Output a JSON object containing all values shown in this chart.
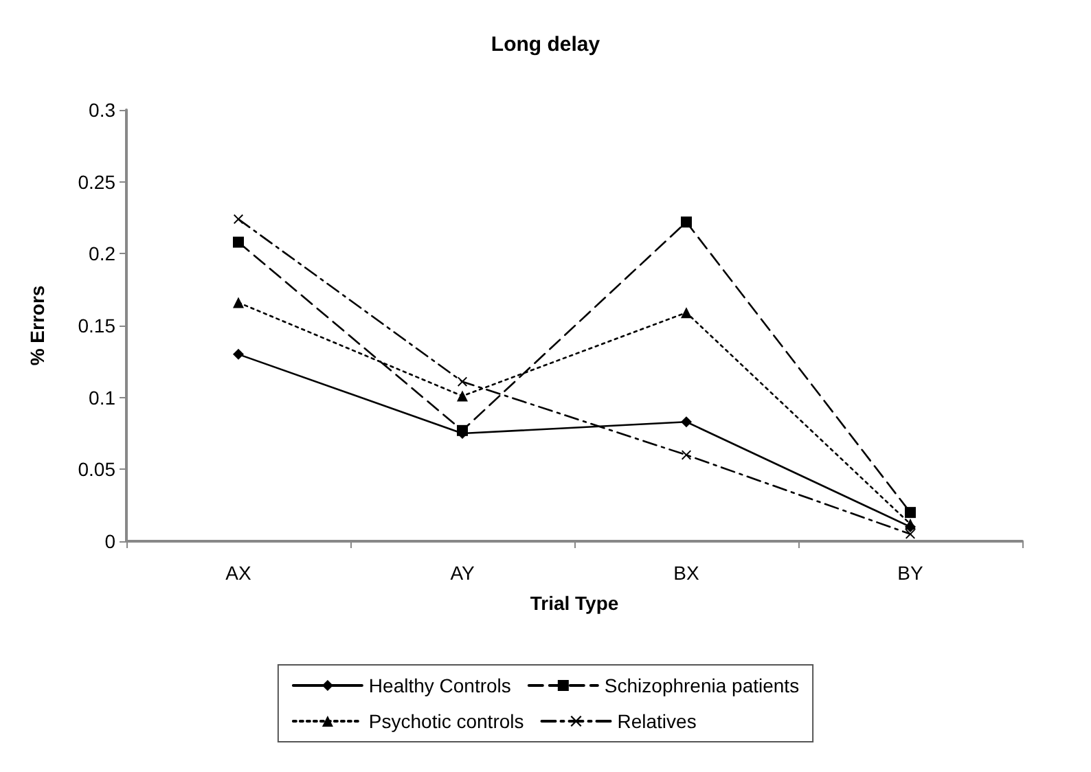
{
  "chart_data": {
    "type": "line",
    "title": "Long delay",
    "xlabel": "Trial Type",
    "ylabel": "% Errors",
    "categories": [
      "AX",
      "AY",
      "BX",
      "BY"
    ],
    "series": [
      {
        "name": "Healthy Controls",
        "color": "#000000",
        "marker": "diamond",
        "line_style": "solid",
        "values": [
          0.13,
          0.075,
          0.083,
          0.01
        ]
      },
      {
        "name": "Schizophrenia patients",
        "color": "#000000",
        "marker": "square",
        "line_style": "dashed",
        "values": [
          0.208,
          0.077,
          0.222,
          0.02
        ]
      },
      {
        "name": "Psychotic controls",
        "color": "#000000",
        "marker": "triangle",
        "line_style": "dotted",
        "values": [
          0.166,
          0.101,
          0.159,
          0.012
        ]
      },
      {
        "name": "Relatives",
        "color": "#000000",
        "marker": "cross",
        "line_style": "dashdot",
        "values": [
          0.224,
          0.111,
          0.06,
          0.005
        ]
      }
    ],
    "ylim": [
      0,
      0.3
    ],
    "yticks": [
      0,
      0.05,
      0.1,
      0.15,
      0.2,
      0.25,
      0.3
    ],
    "grid": false,
    "legend": "bottom"
  }
}
